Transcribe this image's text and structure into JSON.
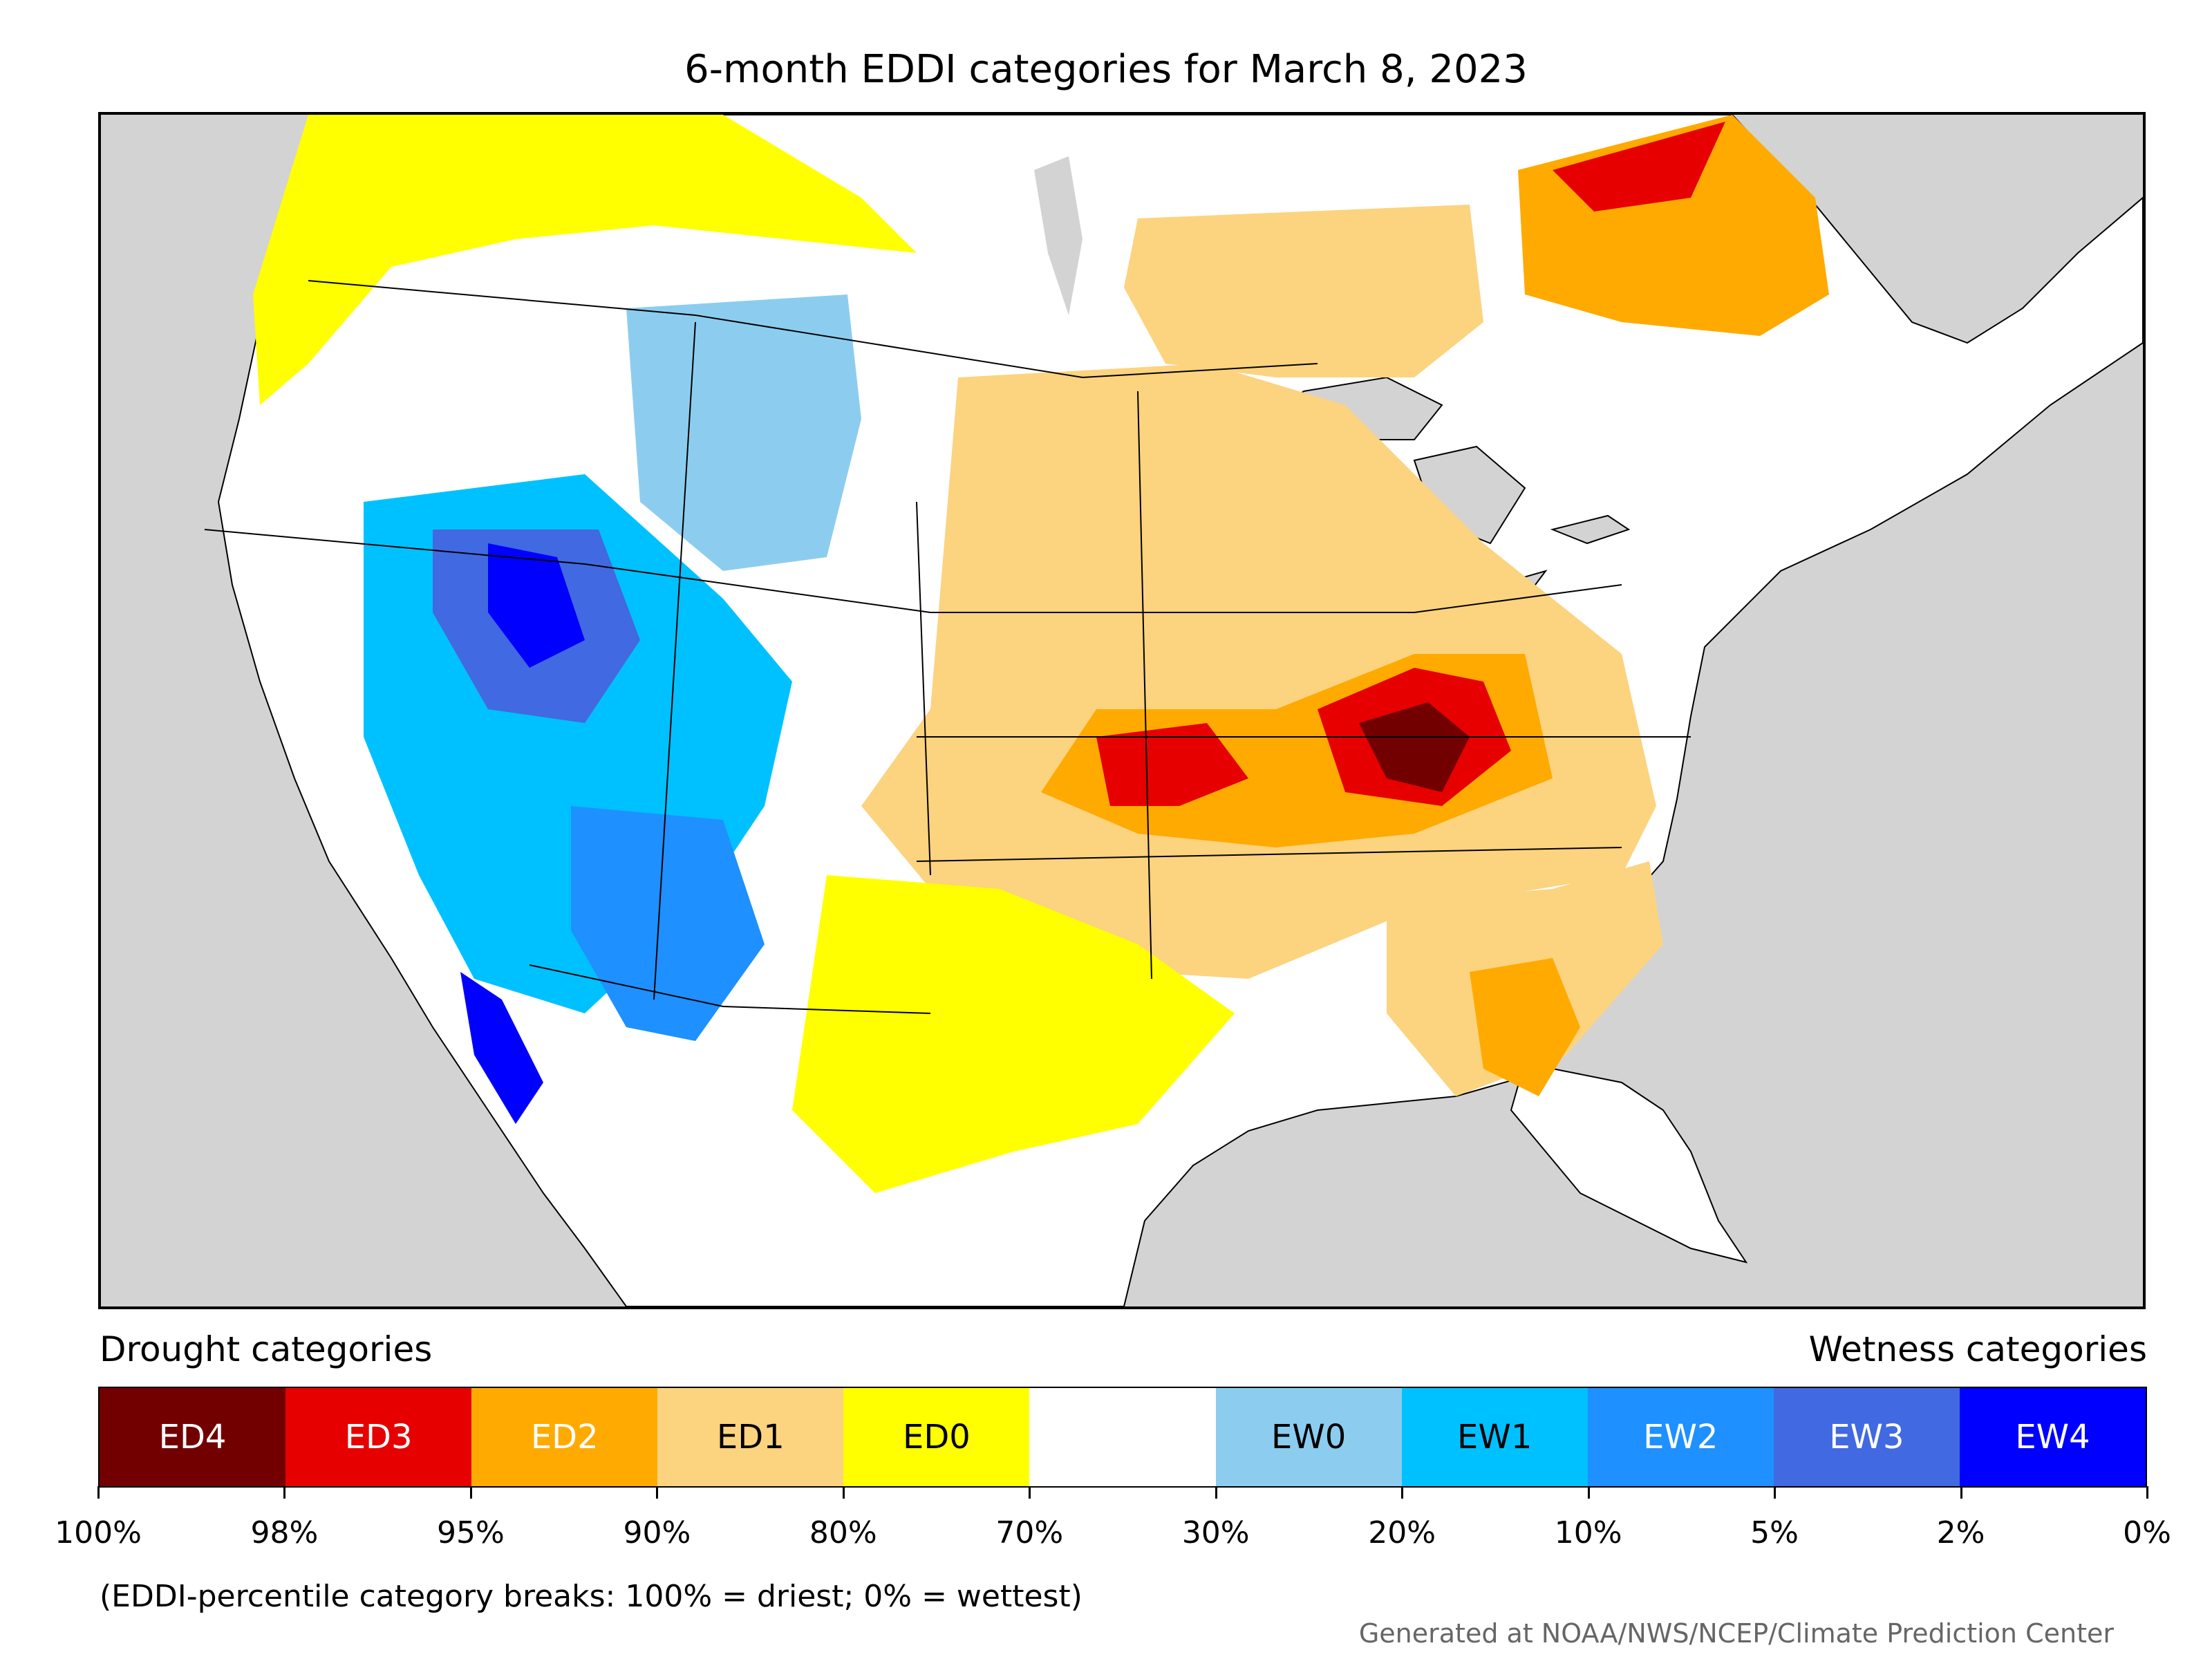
{
  "title": "6-month EDDI categories for March 8, 2023",
  "legend": {
    "drought_heading": "Drought categories",
    "wetness_heading": "Wetness categories",
    "categories": [
      {
        "label": "ED4",
        "color": "#730000",
        "text_color": "#ffffff"
      },
      {
        "label": "ED3",
        "color": "#e60000",
        "text_color": "#ffffff"
      },
      {
        "label": "ED2",
        "color": "#ffaa00",
        "text_color": "#ffffff"
      },
      {
        "label": "ED1",
        "color": "#fcd37f",
        "text_color": "#000000"
      },
      {
        "label": "ED0",
        "color": "#ffff00",
        "text_color": "#000000"
      },
      {
        "label": "",
        "color": "#ffffff",
        "text_color": "#000000"
      },
      {
        "label": "EW0",
        "color": "#8ccdef",
        "text_color": "#000000"
      },
      {
        "label": "EW1",
        "color": "#00c1ff",
        "text_color": "#000000"
      },
      {
        "label": "EW2",
        "color": "#1e90ff",
        "text_color": "#ffffff"
      },
      {
        "label": "EW3",
        "color": "#4169e1",
        "text_color": "#ffffff"
      },
      {
        "label": "EW4",
        "color": "#0000ff",
        "text_color": "#ffffff"
      }
    ],
    "breaks": [
      "100%",
      "98%",
      "95%",
      "90%",
      "80%",
      "70%",
      "30%",
      "20%",
      "10%",
      "5%",
      "2%",
      "0%"
    ]
  },
  "note": "(EDDI-percentile category breaks: 100% = driest; 0% = wettest)",
  "credit": "Generated at NOAA/NWS/NCEP/Climate Prediction Center",
  "map": {
    "background_color": "#d3d3d3",
    "land_color": "#ffffff",
    "regions": [
      {
        "name": "great-basin-wet",
        "category": "EW1"
      },
      {
        "name": "nevada-utah-core-wet",
        "category": "EW3"
      },
      {
        "name": "sierra-wet",
        "category": "EW4"
      },
      {
        "name": "wyoming-montana-wet",
        "category": "EW0"
      },
      {
        "name": "arizona-wet",
        "category": "EW2"
      },
      {
        "name": "baja-coast-wet",
        "category": "EW4"
      },
      {
        "name": "pacific-northwest-dry",
        "category": "ED0"
      },
      {
        "name": "canada-east-dry",
        "category": "ED1"
      },
      {
        "name": "quebec-dry",
        "category": "ED2"
      },
      {
        "name": "quebec-core-dry",
        "category": "ED3"
      },
      {
        "name": "central-plains-dry",
        "category": "ED1"
      },
      {
        "name": "kansas-missouri-dry",
        "category": "ED2"
      },
      {
        "name": "missouri-core-dry",
        "category": "ED3"
      },
      {
        "name": "indiana-ohio-dry",
        "category": "ED3"
      },
      {
        "name": "indiana-kentucky-core-dry",
        "category": "ED4"
      },
      {
        "name": "texas-gulf-dry",
        "category": "ED0"
      },
      {
        "name": "southeast-dry",
        "category": "ED1"
      },
      {
        "name": "georgia-florida-dry",
        "category": "ED2"
      }
    ]
  }
}
